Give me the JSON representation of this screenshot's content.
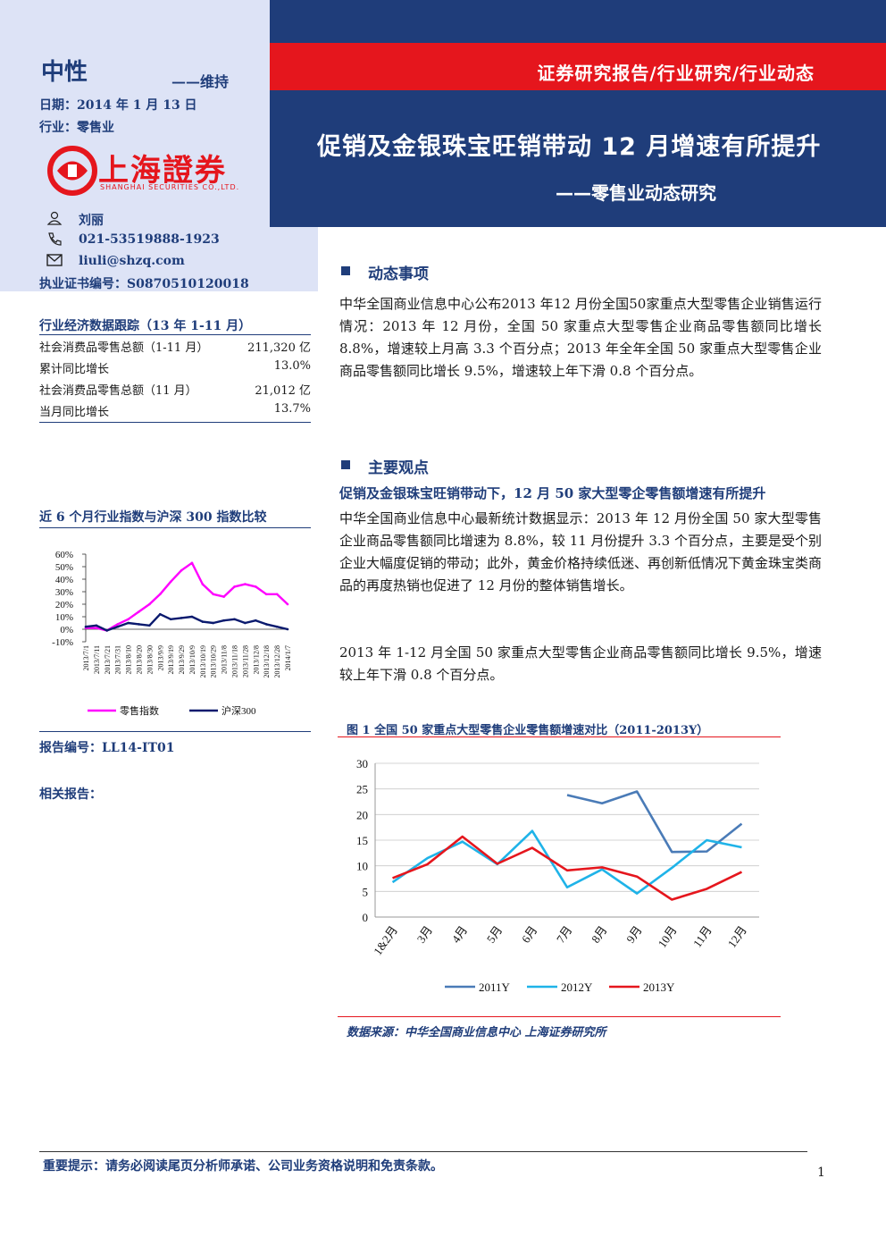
{
  "header": {
    "rating": "中性",
    "rating_action": "——维持",
    "date": "日期：2014 年 1 月 13 日",
    "industry": "行业：零售业",
    "banner": "证券研究报告/行业研究/行业动态",
    "title": "促销及金银珠宝旺销带动 12 月增速有所提升",
    "subtitle": "——零售业动态研究",
    "logo_cn": "上海證券",
    "logo_en": "SHANGHAI SECURITIES CO.,LTD."
  },
  "analyst": {
    "name": "刘丽",
    "phone": "021-53519888-1923",
    "email": "liuli@shzq.com",
    "cert": "执业证书编号：S0870510120018"
  },
  "econ": {
    "title": "行业经济数据跟踪（13 年 1-11 月）",
    "rows": [
      {
        "label": "社会消费品零售总额（1-11 月）",
        "value": "211,320 亿"
      },
      {
        "label": "累计同比增长",
        "value": "13.0%"
      },
      {
        "label": "社会消费品零售总额（11 月）",
        "value": "21,012 亿"
      },
      {
        "label": "当月同比增长",
        "value": "13.7%"
      }
    ]
  },
  "small_chart_title": "近 6 个月行业指数与沪深 300 指数比较",
  "report_no": "报告编号：LL14-IT01",
  "related": "相关报告：",
  "section1": {
    "heading": "动态事项",
    "text": "中华全国商业信息中心公布2013 年12 月份全国50家重点大型零售企业销售运行情况：2013 年 12 月份，全国 50 家重点大型零售企业商品零售额同比增长 8.8%，增速较上月高 3.3 个百分点；2013 年全年全国 50 家重点大型零售企业商品零售额同比增长 9.5%，增速较上年下滑 0.8 个百分点。"
  },
  "section2": {
    "heading": "主要观点",
    "lead": "促销及金银珠宝旺销带动下，12 月 50 家大型零企零售额增速有所提升",
    "p1": "中华全国商业信息中心最新统计数据显示：2013 年 12 月份全国 50 家大型零售企业商品零售额同比增速为 8.8%，较 11 月份提升 3.3 个百分点，主要是受个别企业大幅度促销的带动；此外，黄金价格持续低迷、再创新低情况下黄金珠宝类商品的再度热销也促进了 12 月份的整体销售增长。",
    "p2": "2013 年 1-12 月全国 50 家重点大型零售企业商品零售额同比增长 9.5%，增速较上年下滑 0.8 个百分点。"
  },
  "figure": {
    "title": "图 1 全国 50 家重点大型零售企业零售额增速对比（2011-2013Y）",
    "source": "数据来源：中华全国商业信息中心 上海证券研究所"
  },
  "footer": {
    "notice": "重要提示：请务必阅读尾页分析师承诺、公司业务资格说明和免责条款。",
    "page": "1"
  },
  "chart_data": [
    {
      "type": "line",
      "title": "",
      "x": [
        "2013/7/1",
        "2013/7/11",
        "2013/7/21",
        "2013/7/31",
        "2013/8/10",
        "2013/8/20",
        "2013/8/30",
        "2013/9/9",
        "2013/9/19",
        "2013/9/29",
        "2013/10/9",
        "2013/10/19",
        "2013/10/29",
        "2013/11/8",
        "2013/11/18",
        "2013/11/28",
        "2013/12/8",
        "2013/12/18",
        "2013/12/28",
        "2014/1/7"
      ],
      "series": [
        {
          "name": "零售指数",
          "color": "#ff00ff",
          "values": [
            1,
            1,
            -1,
            4,
            8,
            14,
            20,
            28,
            38,
            47,
            53,
            36,
            28,
            26,
            34,
            36,
            34,
            28,
            28,
            20
          ]
        },
        {
          "name": "沪深300",
          "color": "#0a1a6e",
          "values": [
            2,
            3,
            -1,
            2,
            5,
            4,
            3,
            12,
            8,
            9,
            10,
            6,
            5,
            7,
            8,
            5,
            7,
            4,
            2,
            0
          ]
        }
      ],
      "ylim": [
        -10,
        60
      ],
      "yticks": [
        "-10%",
        "0%",
        "10%",
        "20%",
        "30%",
        "40%",
        "50%",
        "60%"
      ],
      "legend": "bottom"
    },
    {
      "type": "line",
      "title": "图 1 全国 50 家重点大型零售企业零售额增速对比（2011-2013Y）",
      "categories": [
        "1&2月",
        "3月",
        "4月",
        "5月",
        "6月",
        "7月",
        "8月",
        "9月",
        "10月",
        "11月",
        "12月"
      ],
      "series": [
        {
          "name": "2011Y",
          "color": "#4a7bb7",
          "values": [
            null,
            null,
            null,
            null,
            null,
            23.8,
            22.2,
            24.5,
            12.7,
            12.8,
            18.2
          ]
        },
        {
          "name": "2012Y",
          "color": "#1fb3e8",
          "values": [
            6.8,
            11.5,
            14.7,
            10.3,
            16.8,
            5.8,
            9.3,
            4.6,
            9.6,
            15.0,
            13.6
          ]
        },
        {
          "name": "2013Y",
          "color": "#e5161d",
          "values": [
            7.6,
            10.3,
            15.7,
            10.4,
            13.5,
            9.1,
            9.7,
            7.9,
            3.4,
            5.5,
            8.8
          ]
        }
      ],
      "ylim": [
        0,
        30
      ],
      "yticks": [
        0,
        5,
        10,
        15,
        20,
        25,
        30
      ],
      "legend": "bottom",
      "grid": true
    }
  ]
}
